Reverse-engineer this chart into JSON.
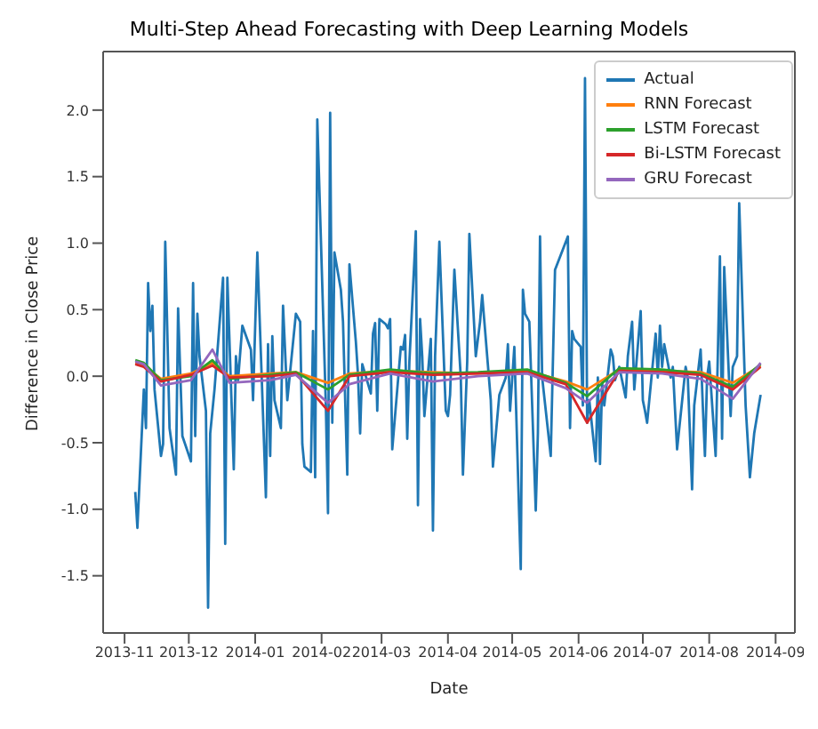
{
  "chart_data": {
    "type": "line",
    "title": "Multi-Step Ahead Forecasting with Deep Learning Models",
    "xlabel": "Date",
    "ylabel": "Difference in Close Price",
    "xlim": [
      "2013-10-22",
      "2014-09-10"
    ],
    "xticks": [
      "2013-11",
      "2013-12",
      "2014-01",
      "2014-02",
      "2014-03",
      "2014-04",
      "2014-05",
      "2014-06",
      "2014-07",
      "2014-08",
      "2014-09"
    ],
    "ylim": [
      -1.93,
      2.44
    ],
    "yticks": [
      {
        "value": -1.5,
        "label": "-1.5"
      },
      {
        "value": -1,
        "label": "-1.0"
      },
      {
        "value": -0.5,
        "label": "-0.5"
      },
      {
        "value": 0,
        "label": "0.0"
      },
      {
        "value": 0.5,
        "label": "0.5"
      },
      {
        "value": 1,
        "label": "1.0"
      },
      {
        "value": 1.5,
        "label": "1.5"
      },
      {
        "value": 2,
        "label": "2.0"
      }
    ],
    "grid": false,
    "legend": "top right",
    "marker": "none",
    "line_style": "solid",
    "series": [
      {
        "name": "Actual",
        "color": "#1f77b4",
        "x": [
          "2013-11-06",
          "2013-11-07",
          "2013-11-10",
          "2013-11-11",
          "2013-11-12",
          "2013-11-13",
          "2013-11-14",
          "2013-11-15",
          "2013-11-18",
          "2013-11-19",
          "2013-11-20",
          "2013-11-22",
          "2013-11-25",
          "2013-11-26",
          "2013-11-28",
          "2013-12-02",
          "2013-12-03",
          "2013-12-04",
          "2013-12-05",
          "2013-12-06",
          "2013-12-09",
          "2013-12-10",
          "2013-12-11",
          "2013-12-13",
          "2013-12-17",
          "2013-12-18",
          "2013-12-19",
          "2013-12-22",
          "2013-12-23",
          "2013-12-24",
          "2013-12-26",
          "2013-12-30",
          "2013-12-31",
          "2014-01-02",
          "2014-01-06",
          "2014-01-07",
          "2014-01-08",
          "2014-01-09",
          "2014-01-10",
          "2014-01-13",
          "2014-01-14",
          "2014-01-16",
          "2014-01-20",
          "2014-01-22",
          "2014-01-23",
          "2014-01-24",
          "2014-01-27",
          "2014-01-28",
          "2014-01-29",
          "2014-01-30",
          "2014-02-03",
          "2014-02-04",
          "2014-02-05",
          "2014-02-06",
          "2014-02-07",
          "2014-02-10",
          "2014-02-11",
          "2014-02-13",
          "2014-02-14",
          "2014-02-17",
          "2014-02-18",
          "2014-02-19",
          "2014-02-20",
          "2014-02-24",
          "2014-02-25",
          "2014-02-26",
          "2014-02-27",
          "2014-02-28",
          "2014-03-03",
          "2014-03-04",
          "2014-03-05",
          "2014-03-06",
          "2014-03-10",
          "2014-03-11",
          "2014-03-12",
          "2014-03-13",
          "2014-03-14",
          "2014-03-17",
          "2014-03-18",
          "2014-03-19",
          "2014-03-20",
          "2014-03-21",
          "2014-03-24",
          "2014-03-25",
          "2014-03-26",
          "2014-03-28",
          "2014-03-31",
          "2014-04-01",
          "2014-04-02",
          "2014-04-04",
          "2014-04-07",
          "2014-04-08",
          "2014-04-10",
          "2014-04-11",
          "2014-04-14",
          "2014-04-16",
          "2014-04-17",
          "2014-04-21",
          "2014-04-22",
          "2014-04-25",
          "2014-04-28",
          "2014-04-29",
          "2014-04-30",
          "2014-05-02",
          "2014-05-05",
          "2014-05-06",
          "2014-05-07",
          "2014-05-09",
          "2014-05-12",
          "2014-05-13",
          "2014-05-14",
          "2014-05-15",
          "2014-05-19",
          "2014-05-21",
          "2014-05-27",
          "2014-05-28",
          "2014-05-29",
          "2014-05-30",
          "2014-06-02",
          "2014-06-03",
          "2014-06-04",
          "2014-06-05",
          "2014-06-06",
          "2014-06-09",
          "2014-06-10",
          "2014-06-11",
          "2014-06-12",
          "2014-06-13",
          "2014-06-16",
          "2014-06-17",
          "2014-06-18",
          "2014-06-20",
          "2014-06-23",
          "2014-06-24",
          "2014-06-26",
          "2014-06-27",
          "2014-06-30",
          "2014-07-01",
          "2014-07-02",
          "2014-07-03",
          "2014-07-07",
          "2014-07-08",
          "2014-07-09",
          "2014-07-10",
          "2014-07-11",
          "2014-07-14",
          "2014-07-15",
          "2014-07-17",
          "2014-07-21",
          "2014-07-22",
          "2014-07-24",
          "2014-07-25",
          "2014-07-28",
          "2014-07-29",
          "2014-07-30",
          "2014-07-31",
          "2014-08-01",
          "2014-08-04",
          "2014-08-05",
          "2014-08-06",
          "2014-08-07",
          "2014-08-08",
          "2014-08-11",
          "2014-08-12",
          "2014-08-14",
          "2014-08-15",
          "2014-08-18",
          "2014-08-20",
          "2014-08-22",
          "2014-08-25"
        ],
        "values": [
          -0.87,
          -1.14,
          -0.1,
          -0.39,
          0.7,
          0.34,
          0.53,
          -0.1,
          -0.6,
          -0.51,
          1.01,
          -0.39,
          -0.74,
          0.51,
          -0.45,
          -0.64,
          0.7,
          -0.45,
          0.47,
          0.15,
          -0.26,
          -1.74,
          -0.43,
          -0.1,
          0.74,
          -1.26,
          0.74,
          -0.7,
          0.15,
          -0.03,
          0.38,
          0.2,
          -0.18,
          0.93,
          -0.91,
          0.24,
          -0.6,
          0.3,
          -0.18,
          -0.39,
          0.53,
          -0.18,
          0.47,
          0.41,
          -0.51,
          -0.68,
          -0.72,
          0.34,
          -0.76,
          1.93,
          -0.22,
          -1.03,
          1.98,
          -0.35,
          0.93,
          0.65,
          0.41,
          -0.74,
          0.84,
          0.26,
          0.01,
          -0.43,
          0.09,
          -0.13,
          0.32,
          0.4,
          -0.26,
          0.43,
          0.39,
          0.36,
          0.43,
          -0.55,
          0.22,
          0.2,
          0.31,
          -0.47,
          0.11,
          1.09,
          -0.97,
          0.43,
          0.15,
          -0.3,
          0.28,
          -1.16,
          0.15,
          1.01,
          -0.26,
          -0.3,
          -0.14,
          0.8,
          -0.01,
          -0.74,
          0.11,
          1.07,
          0.15,
          0.41,
          0.61,
          -0.18,
          -0.68,
          -0.14,
          -0.01,
          0.24,
          -0.26,
          0.22,
          -1.45,
          0.65,
          0.47,
          0.41,
          -1.01,
          -0.43,
          1.05,
          -0.01,
          -0.6,
          0.8,
          1.05,
          -0.39,
          0.34,
          0.28,
          0.22,
          -0.22,
          2.24,
          -0.35,
          -0.18,
          -0.64,
          -0.01,
          -0.66,
          -0.05,
          -0.22,
          0.2,
          0.15,
          -0.03,
          0.07,
          -0.16,
          0.15,
          0.41,
          -0.1,
          0.49,
          -0.18,
          -0.26,
          -0.35,
          0.32,
          -0.01,
          0.38,
          0.07,
          0.24,
          -0.01,
          0.07,
          -0.55,
          0.07,
          -0.01,
          -0.85,
          -0.22,
          0.2,
          -0.22,
          -0.6,
          -0.01,
          0.11,
          -0.6,
          0.15,
          0.9,
          -0.47,
          0.82,
          -0.3,
          0.07,
          0.15,
          1.3,
          -0.22,
          -0.76,
          -0.43,
          -0.14
        ]
      },
      {
        "name": "RNN Forecast",
        "color": "#ff7f0e",
        "x": [
          "2013-11-06",
          "2013-11-10",
          "2013-11-18",
          "2013-12-02",
          "2013-12-12",
          "2013-12-20",
          "2014-01-08",
          "2014-01-20",
          "2014-02-04",
          "2014-02-14",
          "2014-03-05",
          "2014-03-25",
          "2014-04-15",
          "2014-05-08",
          "2014-05-26",
          "2014-06-05",
          "2014-06-20",
          "2014-07-10",
          "2014-07-28",
          "2014-08-12",
          "2014-08-25"
        ],
        "values": [
          0.1,
          0.08,
          -0.02,
          0.02,
          0.1,
          0.0,
          0.02,
          0.03,
          -0.05,
          0.02,
          0.04,
          0.03,
          0.02,
          0.04,
          -0.04,
          -0.1,
          0.05,
          0.04,
          0.03,
          -0.05,
          0.08
        ]
      },
      {
        "name": "LSTM Forecast",
        "color": "#2ca02c",
        "x": [
          "2013-11-06",
          "2013-11-10",
          "2013-11-18",
          "2013-12-02",
          "2013-12-12",
          "2013-12-20",
          "2014-01-08",
          "2014-01-20",
          "2014-02-04",
          "2014-02-14",
          "2014-03-05",
          "2014-03-25",
          "2014-04-15",
          "2014-05-08",
          "2014-05-26",
          "2014-06-05",
          "2014-06-20",
          "2014-07-10",
          "2014-07-28",
          "2014-08-12",
          "2014-08-25"
        ],
        "values": [
          0.12,
          0.1,
          -0.03,
          0.0,
          0.12,
          -0.02,
          0.01,
          0.03,
          -0.1,
          0.01,
          0.05,
          0.02,
          0.03,
          0.05,
          -0.05,
          -0.15,
          0.06,
          0.05,
          0.02,
          -0.08,
          0.09
        ]
      },
      {
        "name": "Bi-LSTM Forecast",
        "color": "#d62728",
        "x": [
          "2013-11-06",
          "2013-11-10",
          "2013-11-18",
          "2013-12-02",
          "2013-12-12",
          "2013-12-20",
          "2014-01-08",
          "2014-01-20",
          "2014-02-04",
          "2014-02-14",
          "2014-03-05",
          "2014-03-25",
          "2014-04-15",
          "2014-05-08",
          "2014-05-26",
          "2014-06-05",
          "2014-06-20",
          "2014-07-10",
          "2014-07-28",
          "2014-08-12",
          "2014-08-25"
        ],
        "values": [
          0.09,
          0.07,
          -0.04,
          0.01,
          0.08,
          -0.01,
          0.0,
          0.02,
          -0.26,
          0.0,
          0.03,
          0.01,
          0.02,
          0.03,
          -0.06,
          -0.35,
          0.04,
          0.03,
          0.01,
          -0.1,
          0.07
        ]
      },
      {
        "name": "GRU Forecast",
        "color": "#9467bd",
        "x": [
          "2013-11-06",
          "2013-11-10",
          "2013-11-18",
          "2013-12-02",
          "2013-12-12",
          "2013-12-20",
          "2014-01-08",
          "2014-01-20",
          "2014-02-04",
          "2014-02-14",
          "2014-03-05",
          "2014-03-25",
          "2014-04-15",
          "2014-05-08",
          "2014-05-26",
          "2014-06-05",
          "2014-06-20",
          "2014-07-10",
          "2014-07-28",
          "2014-08-12",
          "2014-08-25"
        ],
        "values": [
          0.11,
          0.09,
          -0.07,
          -0.03,
          0.2,
          -0.05,
          -0.03,
          0.01,
          -0.2,
          -0.06,
          0.02,
          -0.04,
          0.0,
          0.02,
          -0.09,
          -0.2,
          0.03,
          0.02,
          -0.02,
          -0.17,
          0.1
        ]
      }
    ]
  }
}
